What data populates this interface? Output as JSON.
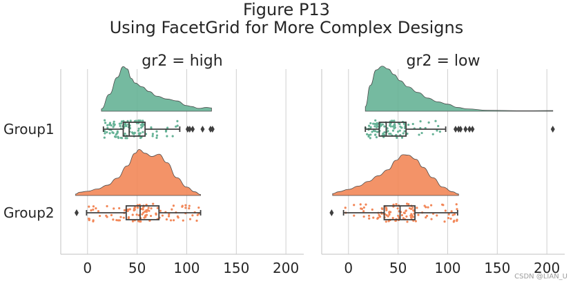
{
  "chart_data": {
    "type": "raincloud",
    "suptitle_line1": "Figure P13",
    "suptitle_line2": "Using FacetGrid for More Complex Designs",
    "categories": [
      "Group1",
      "Group2"
    ],
    "xlim": [
      -27,
      218
    ],
    "xticks": [
      0,
      50,
      100,
      150,
      200
    ],
    "xtick_labels": [
      "0",
      "50",
      "100",
      "150",
      "200"
    ],
    "grid": true,
    "colors": {
      "Group1": "#66b296",
      "Group2": "#f28758"
    },
    "panels": [
      {
        "title": "gr2 = high",
        "groups": [
          {
            "name": "Group1",
            "density": {
              "x": [
                14,
                22,
                30,
                36,
                40,
                44,
                48,
                55,
                62,
                70,
                80,
                90,
                100,
                105,
                112,
                120,
                125
              ],
              "y": [
                0.05,
                0.36,
                0.72,
                0.95,
                0.9,
                0.7,
                0.6,
                0.52,
                0.42,
                0.32,
                0.26,
                0.22,
                0.12,
                0.1,
                0.06,
                0.08,
                0.07
              ]
            },
            "box": {
              "whisker_low": 16,
              "q1": 36,
              "median": 42,
              "q3": 58,
              "whisker_high": 93
            },
            "outliers": [
              101,
              103,
              106,
              116,
              124,
              126
            ]
          },
          {
            "name": "Group2",
            "density": {
              "x": [
                -12,
                -8,
                0,
                10,
                20,
                30,
                40,
                48,
                52,
                58,
                65,
                72,
                80,
                90,
                100,
                108,
                114
              ],
              "y": [
                0.03,
                0.07,
                0.09,
                0.14,
                0.22,
                0.37,
                0.63,
                0.9,
                0.98,
                0.9,
                0.83,
                0.88,
                0.7,
                0.38,
                0.18,
                0.08,
                0.02
              ]
            },
            "box": {
              "whisker_low": -1,
              "q1": 39,
              "median": 53,
              "q3": 72,
              "whisker_high": 114
            },
            "outliers": [
              -11
            ]
          }
        ]
      },
      {
        "title": "gr2 = low",
        "groups": [
          {
            "name": "Group1",
            "density": {
              "x": [
                17,
                22,
                28,
                34,
                40,
                46,
                52,
                60,
                70,
                80,
                90,
                100,
                110,
                120,
                140,
                180,
                206
              ],
              "y": [
                0.1,
                0.55,
                0.88,
                0.96,
                0.9,
                0.78,
                0.65,
                0.52,
                0.4,
                0.28,
                0.2,
                0.15,
                0.08,
                0.05,
                0.02,
                0.01,
                0.015
              ]
            },
            "box": {
              "whisker_low": 17,
              "q1": 31,
              "median": 38,
              "q3": 58,
              "whisker_high": 98
            },
            "outliers": [
              108,
              111,
              113,
              118,
              122,
              125,
              206
            ]
          },
          {
            "name": "Group2",
            "density": {
              "x": [
                -16,
                -10,
                0,
                10,
                20,
                30,
                40,
                48,
                55,
                60,
                68,
                75,
                85,
                95,
                105,
                111
              ],
              "y": [
                0.04,
                0.08,
                0.13,
                0.2,
                0.3,
                0.42,
                0.55,
                0.75,
                0.87,
                0.86,
                0.77,
                0.6,
                0.38,
                0.18,
                0.08,
                0.03
              ]
            },
            "box": {
              "whisker_low": -5,
              "q1": 36,
              "median": 52,
              "q3": 67,
              "whisker_high": 110
            },
            "outliers": [
              -17
            ]
          }
        ]
      }
    ]
  },
  "watermark": "CSDN @LIAN_U"
}
